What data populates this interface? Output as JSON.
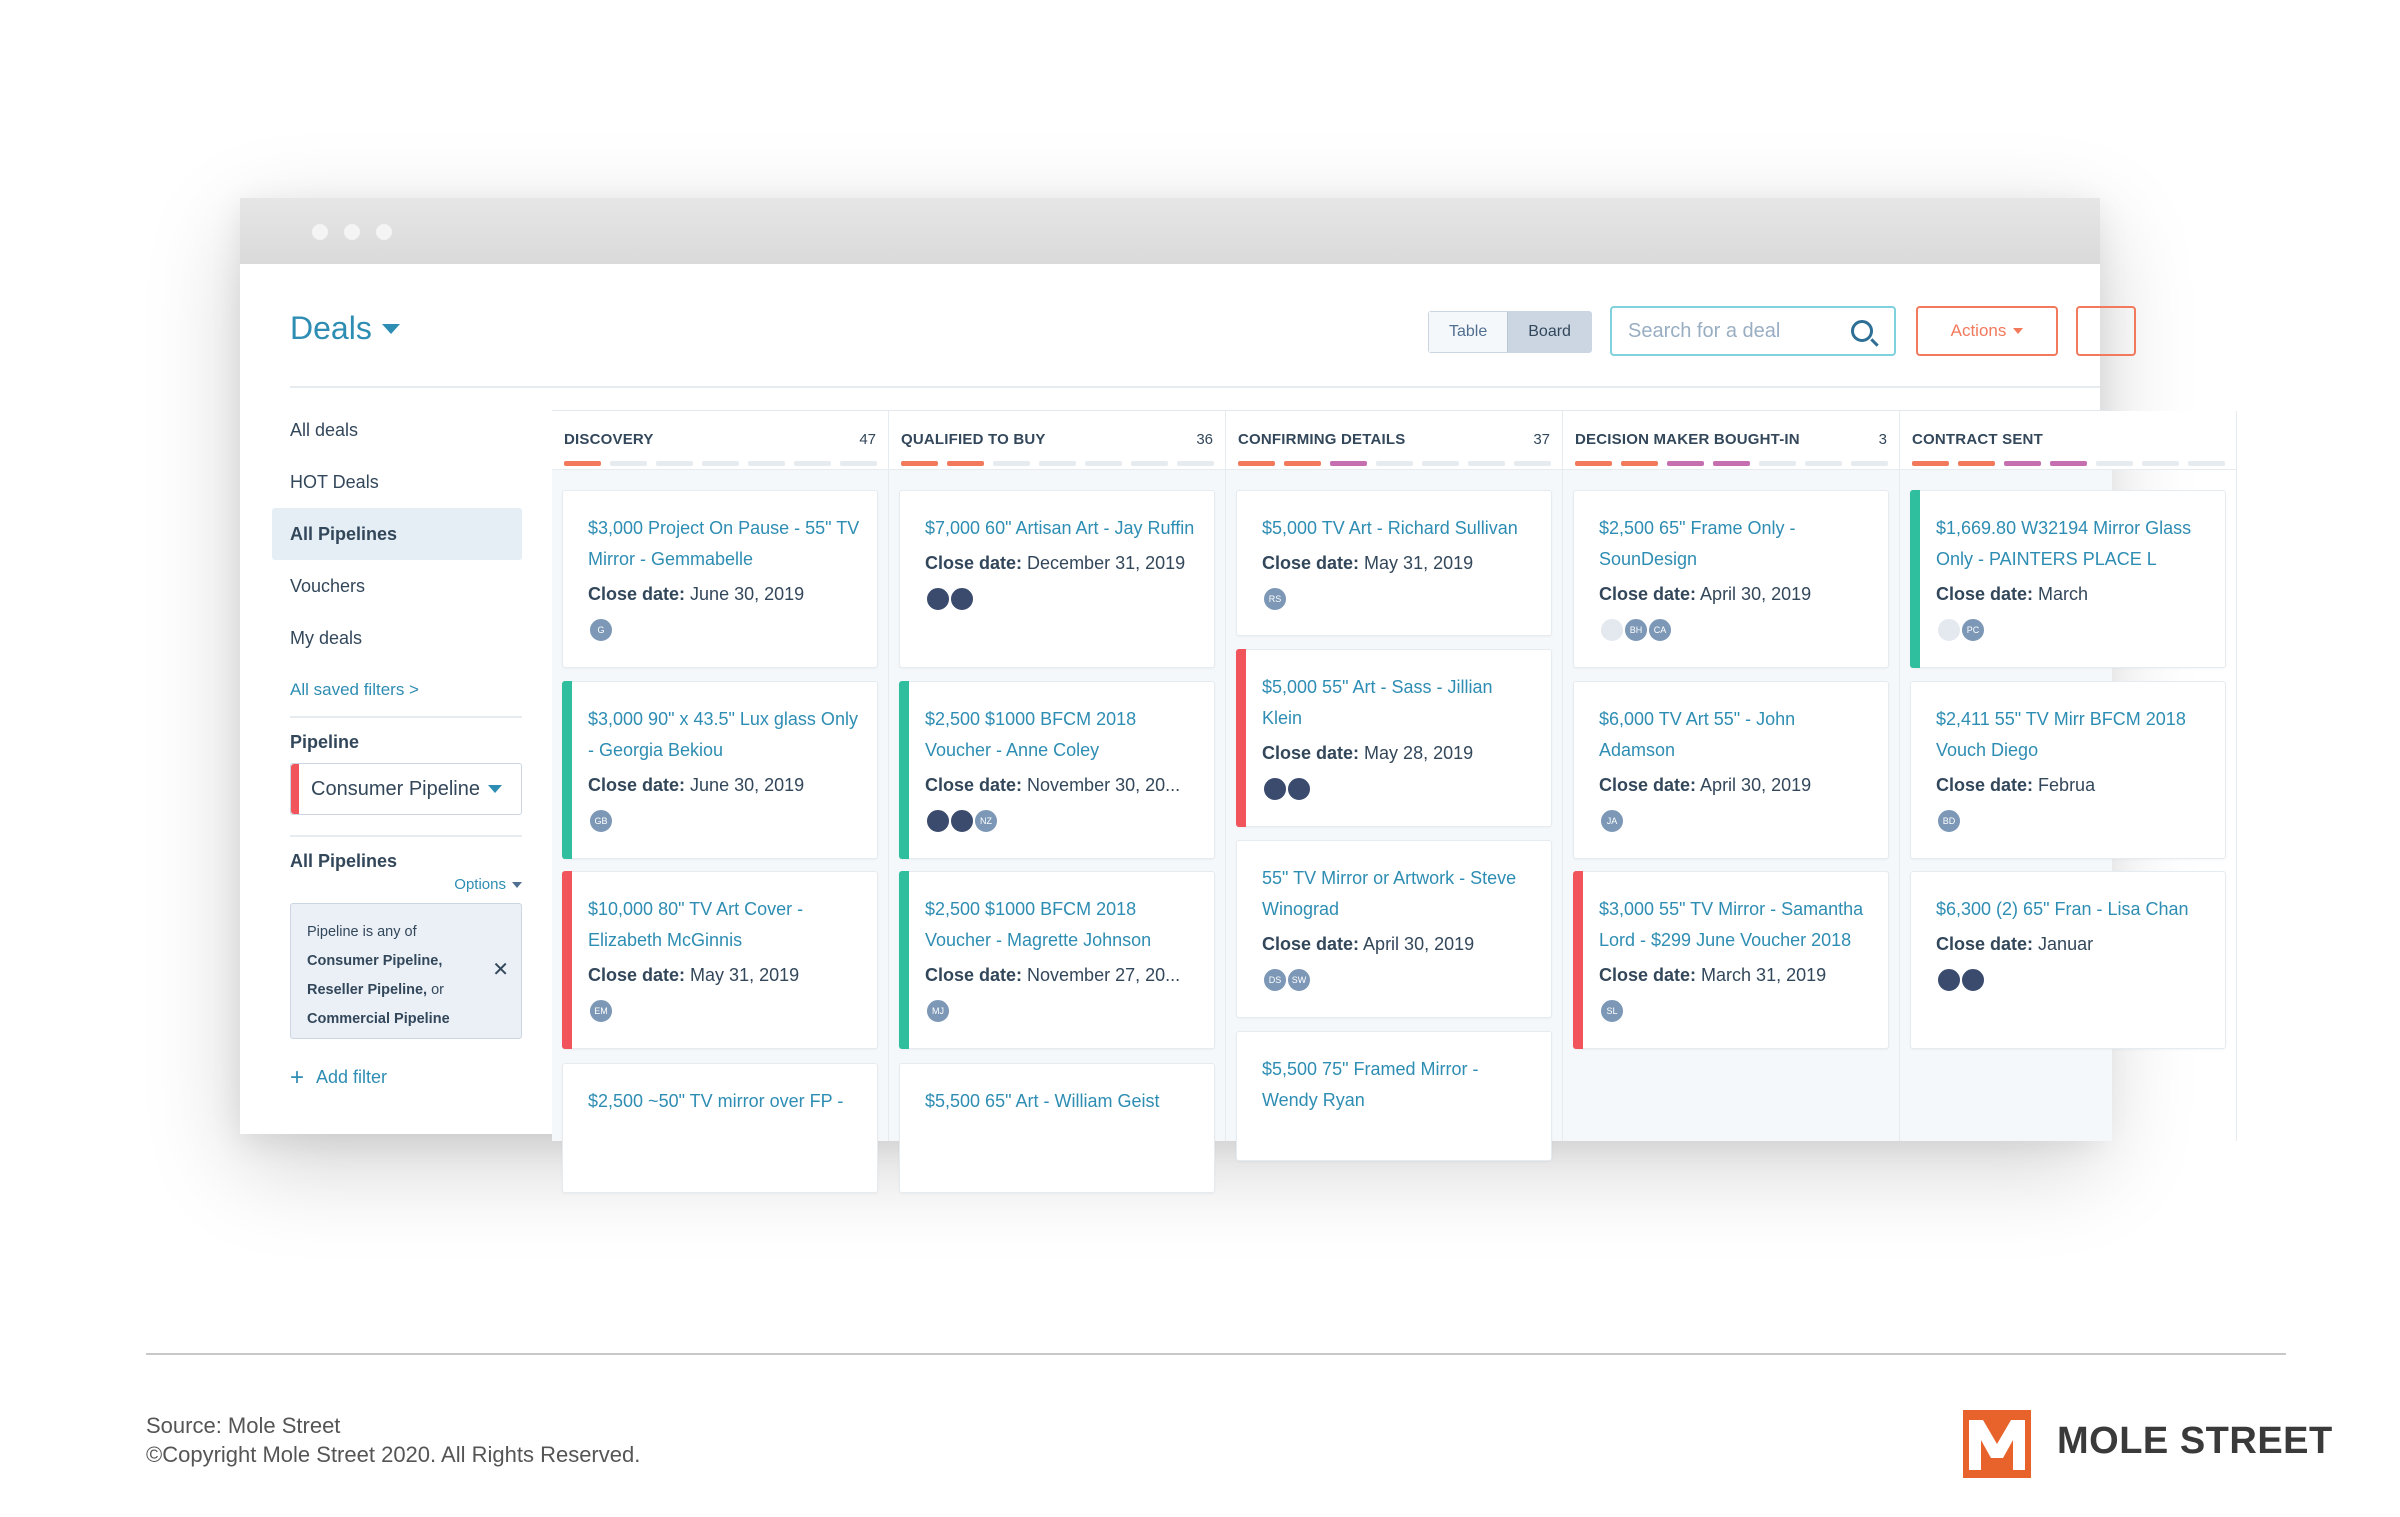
{
  "header": {
    "title": "Deals",
    "view_table": "Table",
    "view_board": "Board",
    "search_placeholder": "Search for a deal",
    "actions_label": "Actions"
  },
  "sidebar": {
    "items": [
      {
        "label": "All deals",
        "selected": false
      },
      {
        "label": "HOT Deals",
        "selected": false
      },
      {
        "label": "All Pipelines",
        "selected": true
      },
      {
        "label": "Vouchers",
        "selected": false
      },
      {
        "label": "My deals",
        "selected": false
      }
    ],
    "saved_filters_link": "All saved filters >",
    "pipeline_label": "Pipeline",
    "pipeline_value": "Consumer Pipeline",
    "filter_group_label": "All Pipelines",
    "options_label": "Options",
    "filter_text": {
      "line1": "Pipeline is any of",
      "line2": "Consumer Pipeline,",
      "line3a": "Reseller Pipeline,",
      "line3b": " or",
      "line4": "Commercial Pipeline"
    },
    "add_filter": "Add filter"
  },
  "board": {
    "columns": [
      {
        "name": "DISCOVERY",
        "count": "47",
        "segments": [
          "#f2795c",
          "#e6ebf0",
          "#e6ebf0",
          "#e6ebf0",
          "#e6ebf0",
          "#e6ebf0",
          "#e6ebf0"
        ],
        "cards": [
          {
            "name": "$3,000 Project On Pause - 55\" TV Mirror - Gemmabelle",
            "date_label": "Close date:",
            "date": "June 30, 2019",
            "avatars": [
              "G"
            ],
            "bar": ""
          },
          {
            "name": "$3,000 90\" x 43.5\" Lux glass Only - Georgia Bekiou",
            "date_label": "Close date:",
            "date": "June 30, 2019",
            "avatars": [
              "GB"
            ],
            "bar": "#2fbf9e"
          },
          {
            "name": "$10,000 80\" TV Art Cover - Elizabeth McGinnis",
            "date_label": "Close date:",
            "date": "May 31, 2019",
            "avatars": [
              "EM"
            ],
            "bar": "#f2545b"
          },
          {
            "name": "$2,500 ~50\" TV mirror over FP -",
            "date_label": "",
            "date": "",
            "avatars": [],
            "bar": ""
          }
        ]
      },
      {
        "name": "QUALIFIED TO BUY",
        "count": "36",
        "segments": [
          "#f2795c",
          "#f2795c",
          "#e6ebf0",
          "#e6ebf0",
          "#e6ebf0",
          "#e6ebf0",
          "#e6ebf0"
        ],
        "cards": [
          {
            "name": "$7,000 60\" Artisan Art - Jay Ruffin",
            "date_label": "Close date:",
            "date": "December 31, 2019",
            "avatars": [
              "",
              ""
            ],
            "avatar_style": "dark",
            "bar": ""
          },
          {
            "name": "$2,500 $1000 BFCM 2018 Voucher - Anne Coley",
            "date_label": "Close date:",
            "date": "November 30, 20...",
            "avatars": [
              "",
              "",
              "NZ"
            ],
            "avatar_style": "dark",
            "bar": "#2fbf9e"
          },
          {
            "name": "$2,500 $1000 BFCM 2018 Voucher - Magrette Johnson",
            "date_label": "Close date:",
            "date": "November 27, 20...",
            "avatars": [
              "MJ"
            ],
            "bar": "#2fbf9e"
          },
          {
            "name": "$5,500 65\" Art - William Geist",
            "date_label": "",
            "date": "",
            "avatars": [],
            "bar": ""
          }
        ]
      },
      {
        "name": "CONFIRMING DETAILS",
        "count": "37",
        "segments": [
          "#f2795c",
          "#f2795c",
          "#c56fb0",
          "#e6ebf0",
          "#e6ebf0",
          "#e6ebf0",
          "#e6ebf0"
        ],
        "cards": [
          {
            "name": "$5,000 TV Art - Richard Sullivan",
            "date_label": "Close date:",
            "date": "May 31, 2019",
            "avatars": [
              "RS"
            ],
            "bar": ""
          },
          {
            "name": "$5,000 55\" Art - Sass - Jillian Klein",
            "date_label": "Close date:",
            "date": "May 28, 2019",
            "avatars": [
              "",
              ""
            ],
            "avatar_style": "dark",
            "bar": "#f2545b"
          },
          {
            "name": "55\" TV Mirror or Artwork - Steve Winograd",
            "date_label": "Close date:",
            "date": "April 30, 2019",
            "avatars": [
              "DS",
              "SW"
            ],
            "bar": ""
          },
          {
            "name": "$5,500 75\" Framed Mirror - Wendy Ryan",
            "date_label": "",
            "date": "",
            "avatars": [],
            "bar": ""
          }
        ]
      },
      {
        "name": "DECISION MAKER BOUGHT-IN",
        "count": "3",
        "segments": [
          "#f2795c",
          "#f2795c",
          "#c56fb0",
          "#c56fb0",
          "#e6ebf0",
          "#e6ebf0",
          "#e6ebf0"
        ],
        "cards": [
          {
            "name": "$2,500 65\" Frame Only - SounDesign",
            "date_label": "Close date:",
            "date": "April 30, 2019",
            "avatars": [
              "",
              "BH",
              "CA"
            ],
            "bar": ""
          },
          {
            "name": "$6,000 TV Art 55\" - John Adamson",
            "date_label": "Close date:",
            "date": "April 30, 2019",
            "avatars": [
              "JA"
            ],
            "bar": ""
          },
          {
            "name": "$3,000 55\" TV Mirror - Samantha Lord - $299 June Voucher 2018",
            "date_label": "Close date:",
            "date": "March 31, 2019",
            "avatars": [
              "SL"
            ],
            "bar": "#f2545b"
          }
        ]
      },
      {
        "name": "CONTRACT SENT",
        "count": "",
        "segments": [
          "#f2795c",
          "#f2795c",
          "#c56fb0",
          "#c56fb0",
          "#e6ebf0",
          "#e6ebf0",
          "#e6ebf0"
        ],
        "cards": [
          {
            "name": "$1,669.80 W32194 Mirror Glass Only - PAINTERS PLACE L",
            "date_label": "Close date:",
            "date": "March",
            "avatars": [
              "",
              "PC"
            ],
            "bar": "#2fbf9e"
          },
          {
            "name": "$2,411 55\" TV Mirr BFCM 2018 Vouch Diego",
            "date_label": "Close date:",
            "date": "Februa",
            "avatars": [
              "BD"
            ],
            "bar": ""
          },
          {
            "name": "$6,300 (2) 65\" Fran - Lisa Chan",
            "date_label": "Close date:",
            "date": "Januar",
            "avatars": [
              "",
              ""
            ],
            "avatar_style": "dark",
            "bar": ""
          }
        ]
      }
    ]
  },
  "footer": {
    "source": "Source: Mole Street",
    "copyright": "©Copyright Mole Street 2020. All Rights Reserved.",
    "brand": "MOLE STREET"
  },
  "colors": {
    "accent_blue": "#2e8db3",
    "accent_orange": "#f2795c",
    "green": "#2fbf9e",
    "red": "#f2545b",
    "brand_orange": "#e8632b"
  }
}
